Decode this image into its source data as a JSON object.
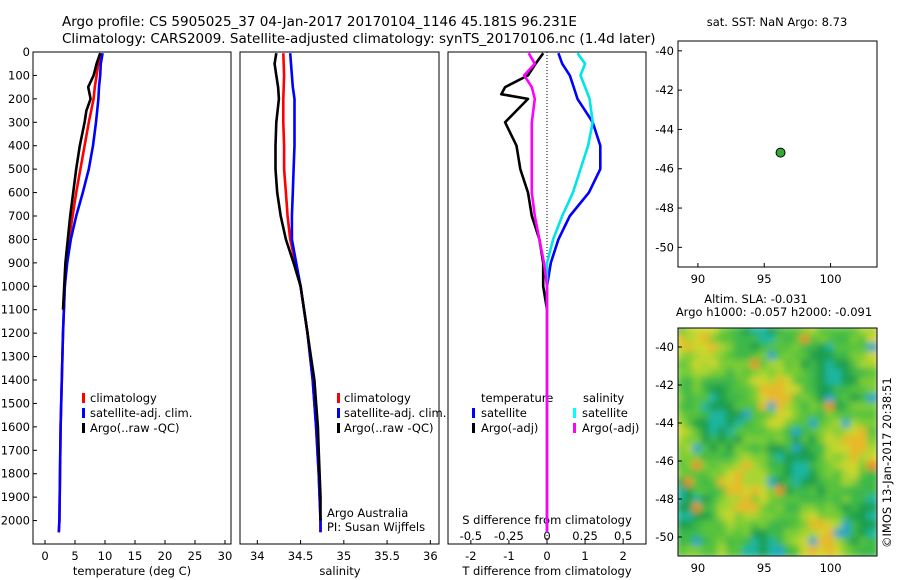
{
  "header": {
    "line1": "Argo profile: CS 5905025_37 04-Jan-2017 20170104_1146 45.181S 96.231E",
    "line2": "Climatology: CARS2009. Satellite-adjusted climatology: synTS_20170106.nc (1.4d later)"
  },
  "colors": {
    "climatology": "#ff0000",
    "satellite": "#0000ff",
    "argo": "#000000",
    "sal_satellite": "#00ffff",
    "sal_argo": "#ff00ff",
    "marker": "#33aa33"
  },
  "chart_data": [
    {
      "id": "temperature",
      "type": "line",
      "xlabel": "temperature (deg C)",
      "ylabel": "",
      "xlim": [
        -2,
        31
      ],
      "ylim": [
        2100,
        0
      ],
      "xticks": [
        "0",
        "5",
        "10",
        "15",
        "20",
        "25",
        "30"
      ],
      "yticks": [
        "0",
        "100",
        "200",
        "300",
        "400",
        "500",
        "600",
        "700",
        "800",
        "900",
        "1000",
        "1100",
        "1200",
        "1300",
        "1400",
        "1500",
        "1600",
        "1700",
        "1800",
        "1900",
        "2000"
      ],
      "legend": [
        "climatology",
        "satellite-adj. clim.",
        "Argo(..raw -QC)"
      ],
      "series": [
        {
          "name": "climatology",
          "color": "red",
          "depth": [
            5,
            50,
            100,
            150,
            200,
            250,
            300,
            400,
            500,
            600,
            700,
            800,
            900,
            1000,
            1200,
            1400,
            1600,
            1800,
            2000,
            2050
          ],
          "values": [
            9.3,
            8.9,
            8.6,
            8.3,
            8.1,
            7.7,
            7.3,
            6.6,
            5.9,
            5.2,
            4.6,
            4.0,
            3.6,
            3.3,
            3.0,
            2.8,
            2.6,
            2.5,
            2.4,
            2.3
          ]
        },
        {
          "name": "satellite-adj. clim.",
          "color": "blue",
          "depth": [
            5,
            50,
            100,
            150,
            200,
            250,
            300,
            400,
            500,
            600,
            700,
            800,
            900,
            1000,
            1200,
            1400,
            1600,
            1800,
            2000,
            2050
          ],
          "values": [
            9.6,
            9.3,
            9.2,
            9.0,
            8.9,
            8.7,
            8.5,
            8.0,
            7.3,
            6.3,
            5.2,
            4.3,
            3.7,
            3.3,
            3.0,
            2.8,
            2.6,
            2.5,
            2.4,
            2.3
          ]
        },
        {
          "name": "Argo(..raw -QC)",
          "color": "black",
          "depth": [
            5,
            50,
            100,
            150,
            200,
            250,
            300,
            400,
            500,
            600,
            700,
            800,
            900,
            1000,
            1100
          ],
          "values": [
            9.2,
            8.6,
            8.1,
            7.2,
            7.6,
            6.9,
            6.6,
            5.8,
            5.2,
            4.7,
            4.2,
            3.8,
            3.4,
            3.2,
            3.0
          ]
        }
      ]
    },
    {
      "id": "salinity",
      "type": "line",
      "xlabel": "salinity",
      "xlim": [
        33.8,
        36.1
      ],
      "ylim": [
        2100,
        0
      ],
      "xticks": [
        "34",
        "34.5",
        "35",
        "35.5",
        "36"
      ],
      "legend": [
        "climatology",
        "satellite-adj. clim.",
        "Argo(..raw -QC)"
      ],
      "annotation": [
        "Argo Australia",
        "PI: Susan Wijffels"
      ],
      "series": [
        {
          "name": "climatology",
          "color": "red",
          "depth": [
            5,
            100,
            200,
            300,
            400,
            500,
            600,
            700,
            800,
            900,
            1000,
            1200,
            1400,
            1600,
            1800,
            2000,
            2050
          ],
          "values": [
            34.3,
            34.31,
            34.3,
            34.3,
            34.31,
            34.31,
            34.33,
            34.35,
            34.38,
            34.44,
            34.5,
            34.58,
            34.64,
            34.68,
            34.71,
            34.73,
            34.73
          ]
        },
        {
          "name": "satellite-adj. clim.",
          "color": "blue",
          "depth": [
            5,
            100,
            150,
            200,
            300,
            400,
            500,
            600,
            700,
            800,
            900,
            1000,
            1200,
            1400,
            1600,
            1800,
            2000,
            2050
          ],
          "values": [
            34.38,
            34.4,
            34.41,
            34.43,
            34.43,
            34.43,
            34.42,
            34.41,
            34.4,
            34.4,
            34.45,
            34.5,
            34.58,
            34.64,
            34.68,
            34.71,
            34.73,
            34.73
          ]
        },
        {
          "name": "Argo(..raw -QC)",
          "color": "black",
          "depth": [
            5,
            50,
            100,
            150,
            200,
            300,
            400,
            500,
            600,
            700,
            800,
            900,
            1000,
            1200,
            1300,
            1400,
            1500,
            1600,
            1700,
            1800,
            1900,
            2000
          ],
          "values": [
            34.22,
            34.2,
            34.22,
            34.24,
            34.25,
            34.22,
            34.21,
            34.21,
            34.23,
            34.27,
            34.33,
            34.42,
            34.5,
            34.58,
            34.62,
            34.66,
            34.68,
            34.7,
            34.71,
            34.72,
            34.73,
            34.73
          ]
        }
      ]
    },
    {
      "id": "difference",
      "type": "line",
      "xlabel": "T difference from climatology",
      "xlabel_top": "S difference from climatology",
      "xlim": [
        -2.6,
        2.6
      ],
      "ylim": [
        2100,
        0
      ],
      "xticks": [
        "-2",
        "-1",
        "0",
        "1",
        "2"
      ],
      "xticks_top": [
        "-0.5",
        "-0.25",
        "0",
        "0.25",
        "0.5"
      ],
      "legend_temperature": {
        "title": "temperature",
        "items": [
          "satellite",
          "Argo(-adj)"
        ]
      },
      "legend_salinity": {
        "title": "salinity",
        "items": [
          "satellite",
          "Argo(-adj)"
        ]
      },
      "series": [
        {
          "name": "temperature satellite",
          "color": "blue",
          "depth": [
            5,
            50,
            100,
            150,
            200,
            250,
            300,
            400,
            500,
            600,
            700,
            800,
            900,
            1000,
            1200,
            1400,
            1600,
            1800,
            2000,
            2050
          ],
          "values": [
            0.3,
            0.4,
            0.6,
            0.7,
            0.8,
            1.0,
            1.2,
            1.4,
            1.4,
            1.1,
            0.6,
            0.3,
            0.1,
            0.0,
            0.0,
            0.0,
            0.0,
            0.0,
            0.0,
            0.0
          ]
        },
        {
          "name": "temperature Argo(-adj)",
          "color": "black",
          "depth": [
            5,
            50,
            100,
            150,
            180,
            200,
            250,
            300,
            400,
            500,
            600,
            700,
            800,
            900,
            1000,
            1100
          ],
          "values": [
            -0.1,
            -0.3,
            -0.5,
            -1.1,
            -1.2,
            -0.5,
            -0.8,
            -1.1,
            -0.8,
            -0.7,
            -0.5,
            -0.4,
            -0.2,
            -0.1,
            -0.1,
            0.0
          ]
        },
        {
          "name": "salinity satellite",
          "color": "cyan",
          "depth": [
            5,
            50,
            100,
            150,
            200,
            300,
            400,
            500,
            600,
            700,
            800,
            900,
            1000,
            1200,
            1400,
            1600,
            1800,
            2000,
            2050
          ],
          "values": [
            0.2,
            0.25,
            0.22,
            0.25,
            0.28,
            0.3,
            0.27,
            0.22,
            0.17,
            0.1,
            0.04,
            0.0,
            0.0,
            0.0,
            0.0,
            0.0,
            0.0,
            0.0,
            0.0
          ]
        },
        {
          "name": "salinity Argo(-adj)",
          "color": "magenta",
          "depth": [
            5,
            50,
            100,
            150,
            200,
            300,
            400,
            500,
            600,
            700,
            800,
            900,
            1000,
            1200,
            1400,
            1600,
            1800,
            2000,
            2050
          ],
          "values": [
            -0.12,
            -0.08,
            -0.15,
            -0.1,
            -0.08,
            -0.1,
            -0.1,
            -0.1,
            -0.1,
            -0.08,
            -0.05,
            -0.02,
            0.0,
            0.0,
            0.0,
            0.0,
            0.0,
            0.0,
            0.0
          ]
        }
      ]
    },
    {
      "id": "sst_map",
      "type": "scatter",
      "title": "sat. SST: NaN Argo: 8.73",
      "xlim": [
        88.5,
        103.5
      ],
      "ylim": [
        -51,
        -39.5
      ],
      "xticks": [
        "90",
        "95",
        "100"
      ],
      "yticks": [
        "-40",
        "-42",
        "-44",
        "-46",
        "-48",
        "-50"
      ],
      "points": [
        {
          "x": 96.23,
          "y": -45.18
        }
      ]
    },
    {
      "id": "sla_map",
      "type": "heatmap",
      "title_line1": "Altim. SLA: -0.031",
      "title_line2": "Argo h1000: -0.057 h2000: -0.091",
      "xlim": [
        88.5,
        103.5
      ],
      "ylim": [
        -51,
        -39
      ],
      "xticks": [
        "90",
        "95",
        "100"
      ],
      "yticks": [
        "-40",
        "-42",
        "-44",
        "-46",
        "-48",
        "-50"
      ]
    }
  ],
  "footer": {
    "stamp": "©IMOS 13-Jan-2017 20:38:51"
  }
}
